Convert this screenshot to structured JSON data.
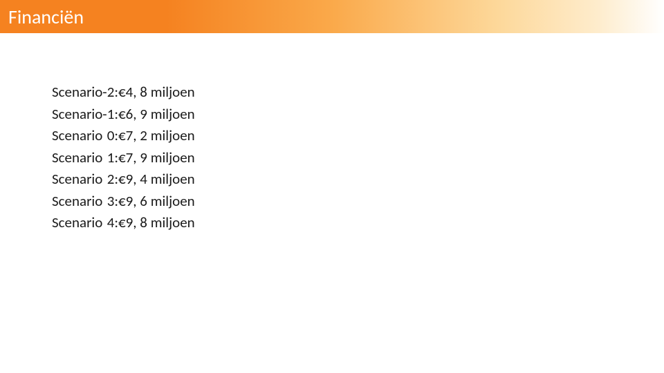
{
  "header": {
    "title": "Financiën",
    "gradient_start": "#f58220",
    "gradient_end": "#ffffff",
    "title_color": "#ffffff",
    "title_fontsize": 28
  },
  "scenarios": {
    "label_prefix": "Scenario",
    "currency_symbol": "€",
    "unit": "miljoen",
    "text_color": "#1a1a1a",
    "fontsize": 21,
    "rows": [
      {
        "num": "-2:",
        "value": "4, 8"
      },
      {
        "num": "-1:",
        "value": "6, 9"
      },
      {
        "num": "0:",
        "value": "7, 2"
      },
      {
        "num": "1:",
        "value": "7, 9"
      },
      {
        "num": "2:",
        "value": "9, 4"
      },
      {
        "num": "3:",
        "value": "9, 6"
      },
      {
        "num": "4:",
        "value": "9, 8"
      }
    ]
  }
}
